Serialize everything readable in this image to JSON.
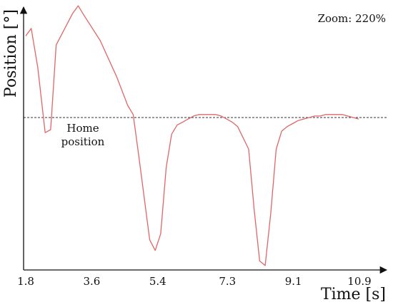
{
  "zoom_label": "Zoom: 220%",
  "chart_data": {
    "type": "line",
    "xlabel": "Time [s]",
    "ylabel": "Position [°]",
    "xticks": [
      "1.8",
      "3.6",
      "5.4",
      "7.3",
      "9.1",
      "10.9"
    ],
    "xlim": [
      1.8,
      11.6
    ],
    "yticks_shown": false,
    "annotation": "Home position",
    "reference_line": {
      "style": "dashed",
      "y": 0
    },
    "series": [
      {
        "color": "#e06666",
        "x": [
          1.8,
          1.95,
          2.13,
          2.33,
          2.48,
          2.63,
          3.08,
          3.23,
          3.38,
          3.83,
          4.28,
          4.58,
          4.73,
          4.88,
          5.18,
          5.33,
          5.48,
          5.63,
          5.78,
          5.93,
          6.08,
          6.23,
          6.38,
          6.53,
          6.68,
          6.98,
          7.13,
          7.28,
          7.43,
          7.58,
          7.88,
          8.03,
          8.18,
          8.33,
          8.48,
          8.63,
          8.78,
          8.93,
          9.08,
          9.23,
          9.38,
          9.53,
          9.68,
          9.83,
          9.98,
          10.13,
          10.28,
          10.43,
          10.58,
          10.73,
          10.88
        ],
        "y": [
          0.54,
          0.59,
          0.33,
          -0.1,
          -0.08,
          0.48,
          0.69,
          0.74,
          0.68,
          0.51,
          0.27,
          0.08,
          0.02,
          -0.25,
          -0.81,
          -0.88,
          -0.77,
          -0.33,
          -0.11,
          -0.05,
          -0.03,
          -0.01,
          0.01,
          0.02,
          0.02,
          0.02,
          0.01,
          -0.01,
          -0.03,
          -0.06,
          -0.21,
          -0.61,
          -0.95,
          -0.98,
          -0.64,
          -0.21,
          -0.09,
          -0.06,
          -0.04,
          -0.02,
          -0.01,
          0.0,
          0.01,
          0.01,
          0.02,
          0.02,
          0.02,
          0.02,
          0.01,
          0.0,
          -0.01
        ]
      }
    ]
  }
}
